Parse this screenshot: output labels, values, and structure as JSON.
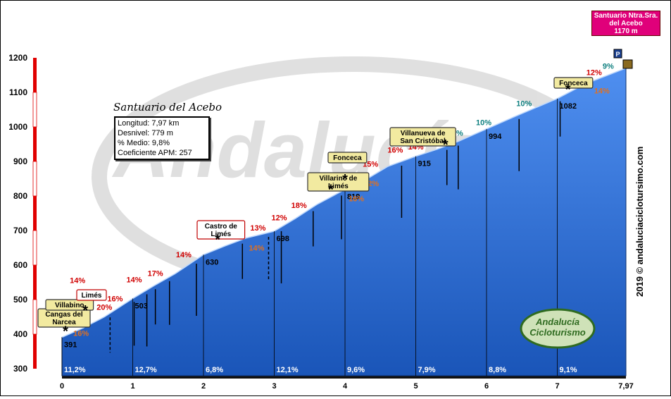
{
  "chart_data": {
    "type": "area",
    "title": "Santuario del Acebo",
    "xlabel": "",
    "ylabel": "",
    "xlim": [
      0,
      7.97
    ],
    "ylim": [
      300,
      1200
    ],
    "x_ticks": [
      "0",
      "1",
      "2",
      "3",
      "4",
      "5",
      "6",
      "7",
      "7,97"
    ],
    "y_ticks": [
      "300",
      "400",
      "500",
      "600",
      "700",
      "800",
      "900",
      "1000",
      "1100",
      "1200"
    ],
    "grid": false,
    "colors": {
      "profile_fill": "#1f5fc0",
      "profile_top": "#4f8ff0",
      "axis_bar_red": "#e00000",
      "brand_green": "#2f6b20",
      "destination": "#e0007a"
    },
    "stats": [
      {
        "label": "Longitud:",
        "value": "7,97 km"
      },
      {
        "label": "Desnivel:",
        "value": "779 m"
      },
      {
        "label": "% Medio:",
        "value": "9,8%"
      },
      {
        "label": "Coeficiente APM:",
        "value": "257"
      }
    ],
    "profile": [
      {
        "x": 0.0,
        "y": 391
      },
      {
        "x": 0.3,
        "y": 418
      },
      {
        "x": 0.6,
        "y": 450
      },
      {
        "x": 1.0,
        "y": 503
      },
      {
        "x": 1.3,
        "y": 540
      },
      {
        "x": 1.6,
        "y": 575
      },
      {
        "x": 2.0,
        "y": 630
      },
      {
        "x": 2.3,
        "y": 655
      },
      {
        "x": 2.6,
        "y": 678
      },
      {
        "x": 3.0,
        "y": 698
      },
      {
        "x": 3.3,
        "y": 735
      },
      {
        "x": 3.6,
        "y": 775
      },
      {
        "x": 4.0,
        "y": 819
      },
      {
        "x": 4.3,
        "y": 848
      },
      {
        "x": 4.6,
        "y": 885
      },
      {
        "x": 5.0,
        "y": 915
      },
      {
        "x": 5.3,
        "y": 935
      },
      {
        "x": 5.6,
        "y": 958
      },
      {
        "x": 6.0,
        "y": 994
      },
      {
        "x": 6.4,
        "y": 1030
      },
      {
        "x": 7.0,
        "y": 1082
      },
      {
        "x": 7.4,
        "y": 1125
      },
      {
        "x": 7.97,
        "y": 1170
      }
    ],
    "km_markers": [
      {
        "x": 0,
        "elev": "391"
      },
      {
        "x": 1,
        "elev": "503"
      },
      {
        "x": 2,
        "elev": "630"
      },
      {
        "x": 3,
        "elev": "698"
      },
      {
        "x": 4,
        "elev": "819"
      },
      {
        "x": 5,
        "elev": "915"
      },
      {
        "x": 6,
        "elev": "994"
      },
      {
        "x": 7,
        "elev": "1082"
      }
    ],
    "segment_gradients": [
      {
        "x": 0.5,
        "label": "11,2%"
      },
      {
        "x": 1.5,
        "label": "12,7%"
      },
      {
        "x": 2.5,
        "label": "6,8%"
      },
      {
        "x": 3.5,
        "label": "12,1%"
      },
      {
        "x": 4.5,
        "label": "9,6%"
      },
      {
        "x": 5.5,
        "label": "7,9%"
      },
      {
        "x": 6.5,
        "label": "8,8%"
      },
      {
        "x": 7.5,
        "label": "9,1%"
      }
    ],
    "annotations": [
      {
        "text": "16%",
        "x": 0.27,
        "y": 395,
        "color": "#e07020"
      },
      {
        "text": "14%",
        "x": 0.22,
        "y": 548,
        "color": "#d00000"
      },
      {
        "text": "20%",
        "x": 0.6,
        "y": 470,
        "color": "#d00000"
      },
      {
        "text": "16%",
        "x": 0.75,
        "y": 495,
        "color": "#d00000"
      },
      {
        "text": "14%",
        "x": 1.02,
        "y": 550,
        "color": "#d00000"
      },
      {
        "text": "17%",
        "x": 1.32,
        "y": 568,
        "color": "#d00000"
      },
      {
        "text": "14%",
        "x": 1.72,
        "y": 622,
        "color": "#d00000"
      },
      {
        "text": "14%",
        "x": 2.75,
        "y": 642,
        "color": "#e07020"
      },
      {
        "text": "13%",
        "x": 2.77,
        "y": 700,
        "color": "#d00000"
      },
      {
        "text": "12%",
        "x": 3.07,
        "y": 730,
        "color": "#d00000"
      },
      {
        "text": "18%",
        "x": 3.35,
        "y": 765,
        "color": "#d00000"
      },
      {
        "text": "16%",
        "x": 4.16,
        "y": 785,
        "color": "#e07020"
      },
      {
        "text": "12%",
        "x": 4.37,
        "y": 829,
        "color": "#e07020"
      },
      {
        "text": "15%",
        "x": 4.36,
        "y": 885,
        "color": "#d00000"
      },
      {
        "text": "16%",
        "x": 4.71,
        "y": 926,
        "color": "#d00000"
      },
      {
        "text": "14%",
        "x": 5.0,
        "y": 935,
        "color": "#d00000"
      },
      {
        "text": "10%",
        "x": 5.56,
        "y": 975,
        "color": "#108080"
      },
      {
        "text": "10%",
        "x": 5.96,
        "y": 1005,
        "color": "#108080"
      },
      {
        "text": "10%",
        "x": 6.53,
        "y": 1060,
        "color": "#108080"
      },
      {
        "text": "14%",
        "x": 7.63,
        "y": 1097,
        "color": "#e07020"
      },
      {
        "text": "12%",
        "x": 7.52,
        "y": 1150,
        "color": "#d00000"
      },
      {
        "text": "9%",
        "x": 7.72,
        "y": 1168,
        "color": "#108080"
      }
    ],
    "place_labels": [
      {
        "lines": [
          "Cangas del",
          "Narcea"
        ],
        "style": "yellow"
      },
      {
        "lines": [
          "Villabino"
        ],
        "style": "yellow"
      },
      {
        "lines": [
          "Limés"
        ],
        "style": "white-red"
      },
      {
        "lines": [
          "Castro de",
          "Limés"
        ],
        "style": "white-red"
      },
      {
        "lines": [
          "Fonceca"
        ],
        "style": "yellow"
      },
      {
        "lines": [
          "Villarino de",
          "Limés"
        ],
        "style": "yellow"
      },
      {
        "lines": [
          "Villanueva de",
          "San Cristóbal"
        ],
        "style": "yellow"
      },
      {
        "lines": [
          "Fonceca"
        ],
        "style": "yellow"
      }
    ],
    "destination": [
      "Santuario Ntra.Sra.",
      "del Acebo",
      "1170 m"
    ],
    "credit": "2019 © andaluciaciclotursimo.com",
    "logo": [
      "Andalucía",
      "Cicloturismo"
    ]
  }
}
